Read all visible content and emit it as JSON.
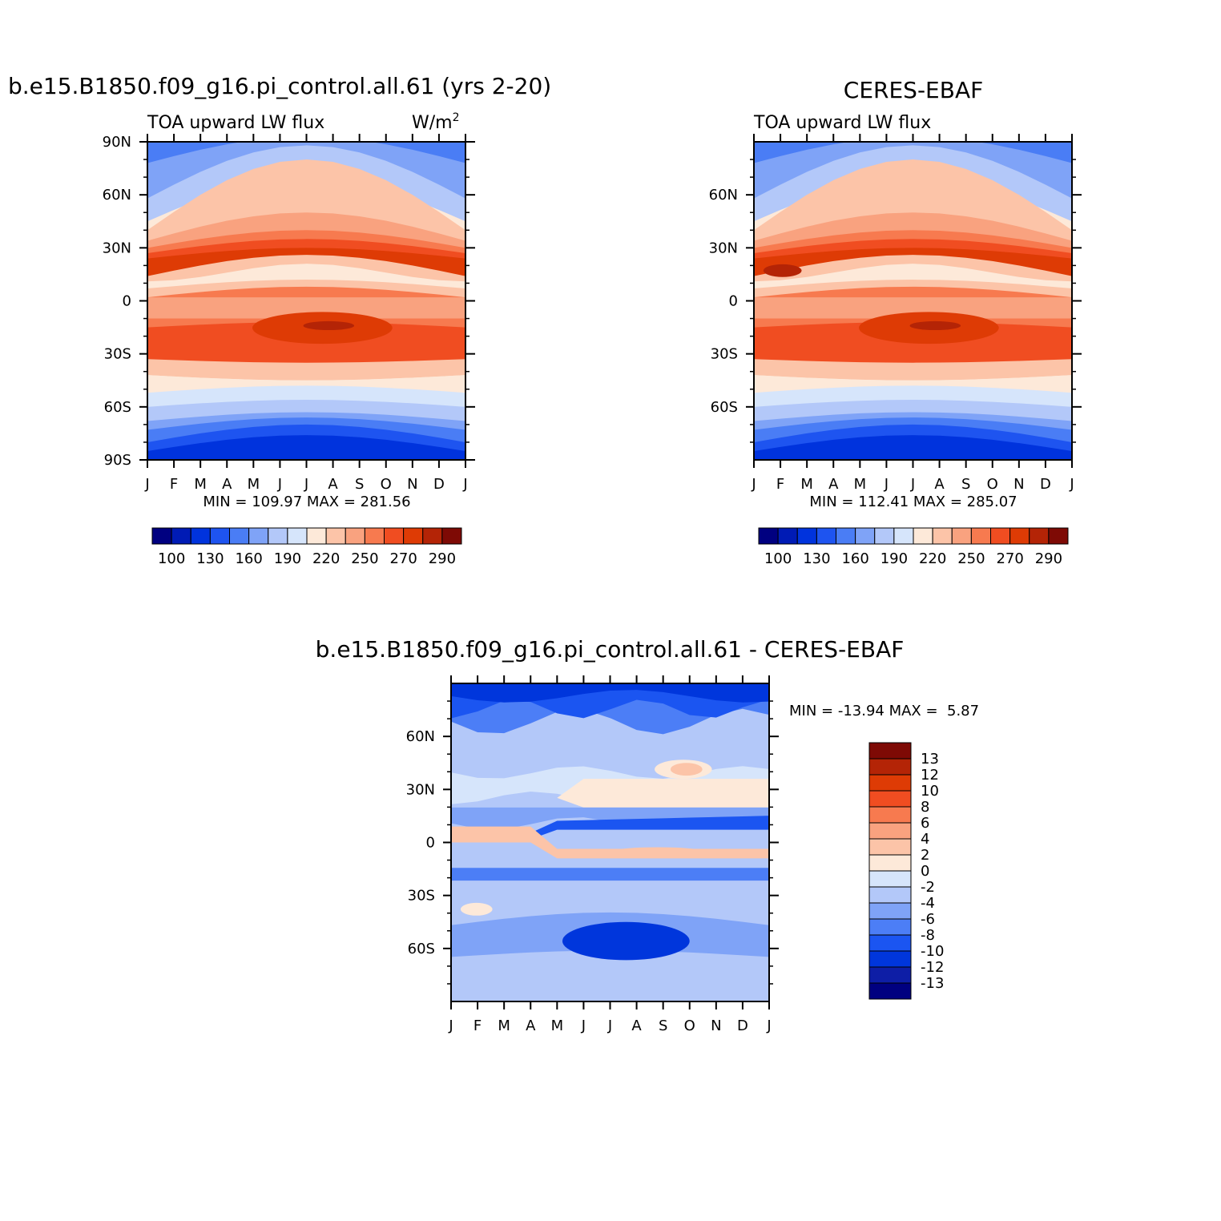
{
  "colors": {
    "absolute_palette": [
      "#000080",
      "#001bb5",
      "#0033dd",
      "#1e54f0",
      "#4a7df5",
      "#7fa3f7",
      "#b3c8f9",
      "#d6e5fb",
      "#fde9d9",
      "#fcc4a8",
      "#f9a27f",
      "#f77a4f",
      "#f04d21",
      "#de3b05",
      "#b42406",
      "#7e0a05"
    ],
    "difference_palette": [
      "#000080",
      "#0e1ea6",
      "#0036dc",
      "#1b55f1",
      "#4c7ef6",
      "#7fa3f7",
      "#b3c8f9",
      "#d6e5fb",
      "#fde9d9",
      "#fcc4a8",
      "#f9a27f",
      "#f77a4f",
      "#f04d21",
      "#de3b05",
      "#b42406",
      "#7e0a05"
    ]
  },
  "chart_data": [
    {
      "id": "model",
      "type": "heatmap",
      "title": "b.e15.B1850.f09_g16.pi_control.all.61 (yrs 2-20)",
      "left_label": "TOA upward LW flux",
      "right_label": "W/m",
      "right_label_sup": "2",
      "x_tick_labels": [
        "J",
        "F",
        "M",
        "A",
        "M",
        "J",
        "J",
        "A",
        "S",
        "O",
        "N",
        "D",
        "J"
      ],
      "y_tick_labels": [
        "90N",
        "60N",
        "30N",
        "0",
        "30S",
        "60S",
        "90S"
      ],
      "ylim": [
        -90,
        90
      ],
      "stats": "MIN = 109.97 MAX = 281.56",
      "min": 109.97,
      "max": 281.56,
      "colorbar_labels": [
        "100",
        "130",
        "160",
        "190",
        "220",
        "250",
        "270",
        "290"
      ],
      "levels": [
        100,
        110,
        120,
        130,
        140,
        150,
        160,
        170,
        180,
        190,
        200,
        210,
        220,
        230,
        240,
        250,
        260,
        270,
        280,
        290
      ]
    },
    {
      "id": "obs",
      "type": "heatmap",
      "title": "CERES-EBAF",
      "left_label": "TOA upward LW flux",
      "x_tick_labels": [
        "J",
        "F",
        "M",
        "A",
        "M",
        "J",
        "J",
        "A",
        "S",
        "O",
        "N",
        "D",
        "J"
      ],
      "y_tick_labels": [
        "60N",
        "30N",
        "0",
        "30S",
        "60S"
      ],
      "ylim": [
        -90,
        90
      ],
      "stats": "MIN = 112.41 MAX = 285.07",
      "min": 112.41,
      "max": 285.07,
      "colorbar_labels": [
        "100",
        "130",
        "160",
        "190",
        "220",
        "250",
        "270",
        "290"
      ]
    },
    {
      "id": "diff",
      "type": "heatmap",
      "title": "b.e15.B1850.f09_g16.pi_control.all.61 - CERES-EBAF",
      "x_tick_labels": [
        "J",
        "F",
        "M",
        "A",
        "M",
        "J",
        "J",
        "A",
        "S",
        "O",
        "N",
        "D",
        "J"
      ],
      "y_tick_labels": [
        "60N",
        "30N",
        "0",
        "30S",
        "60S"
      ],
      "ylim": [
        -90,
        90
      ],
      "stats": "MIN = -13.94 MAX =  5.87",
      "min": -13.94,
      "max": 5.87,
      "colorbar_labels": [
        "13",
        "12",
        "10",
        "8",
        "6",
        "4",
        "2",
        "0",
        "-2",
        "-4",
        "-6",
        "-8",
        "-10",
        "-12",
        "-13"
      ],
      "levels": [
        -13,
        -12,
        -10,
        -8,
        -6,
        -4,
        -2,
        0,
        2,
        4,
        6,
        8,
        10,
        12,
        13
      ]
    }
  ]
}
